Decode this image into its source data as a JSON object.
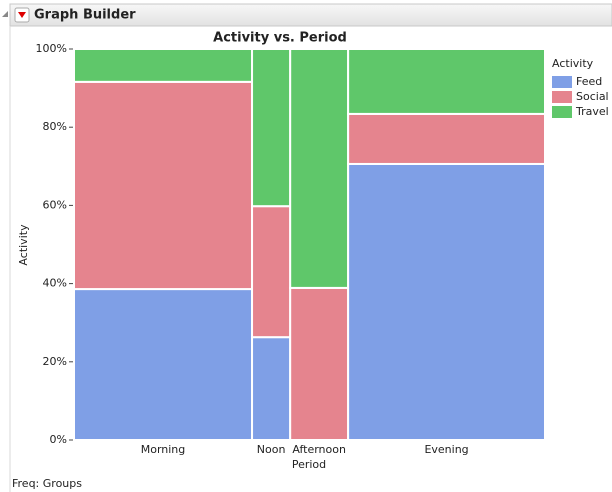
{
  "header": {
    "title": "Graph Builder"
  },
  "chart_data": {
    "type": "mosaic",
    "title": "Activity vs. Period",
    "x_label": "Period",
    "y_label": "Activity",
    "legend_title": "Activity",
    "categories": [
      "Morning",
      "Noon",
      "Afternoon",
      "Evening"
    ],
    "category_shares": [
      37.8,
      8.1,
      12.3,
      41.8
    ],
    "series": [
      {
        "name": "Feed",
        "color": "#7f9fe6",
        "values": [
          38.6,
          26.3,
          0,
          70.6
        ]
      },
      {
        "name": "Social",
        "color": "#e5848e",
        "values": [
          53.0,
          33.5,
          38.9,
          12.8
        ]
      },
      {
        "name": "Travel",
        "color": "#5fc76a",
        "values": [
          8.4,
          40.2,
          61.1,
          16.6
        ]
      }
    ],
    "ylim": [
      0,
      100
    ],
    "yticks": [
      {
        "value": 0,
        "label": "0%"
      },
      {
        "value": 20,
        "label": "20%"
      },
      {
        "value": 40,
        "label": "40%"
      },
      {
        "value": 60,
        "label": "60%"
      },
      {
        "value": 80,
        "label": "80%"
      },
      {
        "value": 100,
        "label": "100%"
      }
    ]
  },
  "footer": {
    "text": "Freq: Groups"
  }
}
